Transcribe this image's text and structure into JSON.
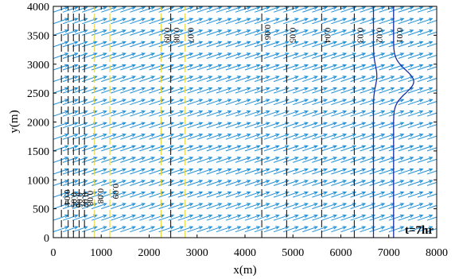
{
  "chart_data": {
    "type": "quiver-contour",
    "xlabel": "x(m)",
    "ylabel": "y(m)",
    "xlim": [
      0,
      8000
    ],
    "ylim": [
      0,
      4000
    ],
    "xticks": [
      0,
      1000,
      2000,
      3000,
      4000,
      5000,
      6000,
      7000,
      8000
    ],
    "yticks": [
      0,
      500,
      1000,
      1500,
      2000,
      2500,
      3000,
      3500,
      4000
    ],
    "time_annotation": "t=7hr",
    "vector_field": {
      "color": "#1f8fd6",
      "x_spacing": 200,
      "y_spacing": 200,
      "direction_deg": 16,
      "arrow_length": 320
    },
    "contours": [
      {
        "label": "0.04",
        "x": 170,
        "y_label": 700,
        "color": "#1a1a1a",
        "line_style": "dashed"
      },
      {
        "label": "0.05",
        "x": 310,
        "y_label": 650,
        "color": "#1a1a1a",
        "line_style": "dashed"
      },
      {
        "label": "0.06",
        "x": 420,
        "y_label": 650,
        "color": "#1a1a1a",
        "line_style": "dashed"
      },
      {
        "label": "0.07",
        "x": 540,
        "y_label": 650,
        "color": "#1a1a1a",
        "line_style": "dashed"
      },
      {
        "label": "0.08",
        "x": 650,
        "y_label": 680,
        "color": "#1a1a1a",
        "line_style": "dashed"
      },
      {
        "label": "0.08",
        "x": 860,
        "y_label": 720,
        "color": "#e7d43a",
        "line_style": "dashed"
      },
      {
        "label": "0.09",
        "x": 1180,
        "y_label": 800,
        "color": "#e7d43a",
        "line_style": "dashed"
      },
      {
        "label": "0.09",
        "x": 2250,
        "y_label": 3500,
        "color": "#e7d43a",
        "line_style": "dashed"
      },
      {
        "label": "0.08",
        "x": 2450,
        "y_label": 3500,
        "color": "#1a1a1a",
        "line_style": "dashed"
      },
      {
        "label": "0.07",
        "x": 2750,
        "y_label": 3500,
        "color": "#e7d43a",
        "line_style": "dashed"
      },
      {
        "label": "0.06",
        "x": 4350,
        "y_label": 3550,
        "color": "#1a1a1a",
        "line_style": "dashed"
      },
      {
        "label": "0.05",
        "x": 4870,
        "y_label": 3500,
        "color": "#1a1a1a",
        "line_style": "dashed"
      },
      {
        "label": "0.04",
        "x": 5600,
        "y_label": 3500,
        "color": "#1a1a1a",
        "line_style": "dashed"
      },
      {
        "label": "0.03",
        "x": 6280,
        "y_label": 3500,
        "color": "#1a1a1a",
        "line_style": "dashed"
      },
      {
        "label": "0.02",
        "x": 6680,
        "y_label": 3500,
        "color": "#1b2ea0",
        "line_style": "solid",
        "bump": {
          "y_center": 2800,
          "amplitude": 70,
          "width": 250
        }
      },
      {
        "label": "0.01",
        "x": 7100,
        "y_label": 3500,
        "color": "#1b2ea0",
        "line_style": "solid",
        "bump": {
          "y_center": 2700,
          "amplitude": 420,
          "width": 280
        }
      }
    ]
  }
}
